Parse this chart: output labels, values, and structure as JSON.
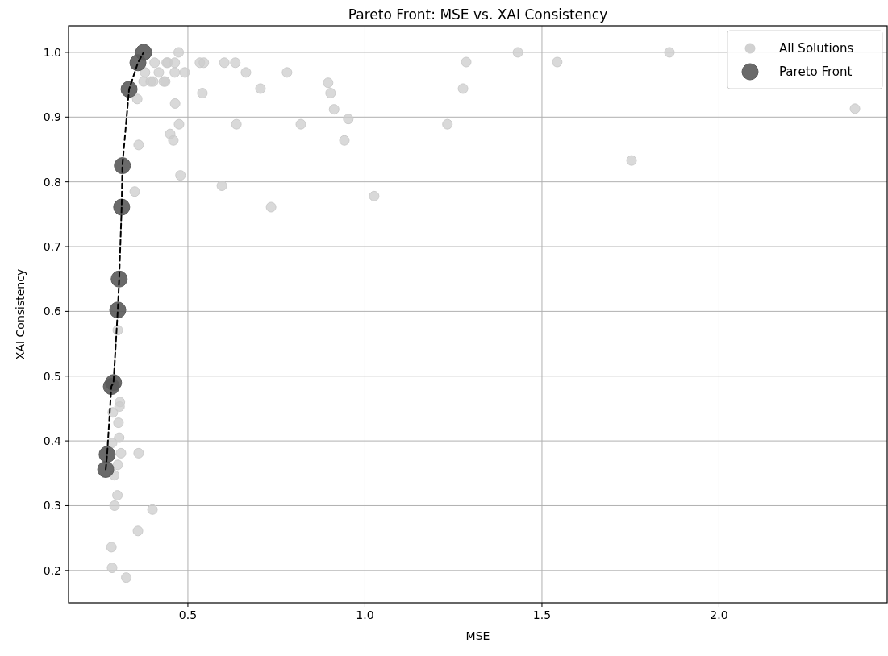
{
  "chart_data": {
    "type": "scatter",
    "title": "Pareto Front: MSE vs. XAI Consistency",
    "xlabel": "MSE",
    "ylabel": "XAI Consistency",
    "xlim": [
      0.163,
      2.475
    ],
    "ylim": [
      0.15,
      1.041
    ],
    "xticks": [
      0.5,
      {
        "value": 1,
        "label": "1.0"
      },
      1.5,
      {
        "value": 2,
        "label": "2.0"
      }
    ],
    "yticks": [
      0.2,
      0.3,
      0.4,
      0.5,
      0.6,
      0.7,
      0.8,
      0.9,
      {
        "value": 1,
        "label": "1.0"
      }
    ],
    "grid": true,
    "legend": "top right",
    "marker": "circle",
    "series": [
      {
        "name": "All Solutions",
        "color": "#cccccc",
        "x": [
          0.474,
          0.406,
          0.44,
          0.443,
          0.463,
          0.534,
          0.545,
          0.603,
          0.634,
          0.379,
          0.418,
          0.463,
          0.491,
          0.664,
          0.375,
          0.395,
          0.402,
          0.432,
          0.436,
          0.705,
          0.541,
          0.357,
          0.464,
          0.475,
          0.637,
          0.45,
          0.459,
          0.361,
          0.479,
          0.596,
          0.35,
          0.735,
          0.78,
          0.896,
          0.903,
          0.913,
          0.953,
          0.819,
          0.942,
          1.286,
          1.432,
          1.277,
          1.233,
          1.543,
          1.86,
          1.753,
          1.026,
          2.384,
          0.302,
          0.308,
          0.307,
          0.288,
          0.304,
          0.306,
          0.286,
          0.311,
          0.361,
          0.302,
          0.292,
          0.301,
          0.293,
          0.4,
          0.359,
          0.284,
          0.286,
          0.326
        ],
        "values": [
          1.0,
          0.984,
          0.984,
          0.984,
          0.984,
          0.984,
          0.984,
          0.984,
          0.984,
          0.969,
          0.969,
          0.969,
          0.969,
          0.969,
          0.955,
          0.955,
          0.955,
          0.955,
          0.955,
          0.944,
          0.937,
          0.928,
          0.921,
          0.889,
          0.889,
          0.874,
          0.864,
          0.857,
          0.81,
          0.794,
          0.785,
          0.761,
          0.969,
          0.953,
          0.937,
          0.912,
          0.897,
          0.889,
          0.864,
          0.985,
          1.0,
          0.944,
          0.889,
          0.985,
          1.0,
          0.833,
          0.778,
          0.913,
          0.571,
          0.46,
          0.453,
          0.444,
          0.428,
          0.405,
          0.397,
          0.381,
          0.381,
          0.363,
          0.347,
          0.316,
          0.3,
          0.294,
          0.261,
          0.236,
          0.204,
          0.189
        ]
      },
      {
        "name": "Pareto Front",
        "color": "#5a5a5a",
        "x": [
          0.268,
          0.272,
          0.284,
          0.29,
          0.302,
          0.306,
          0.313,
          0.315,
          0.334,
          0.359,
          0.375
        ],
        "values": [
          0.356,
          0.379,
          0.484,
          0.49,
          0.602,
          0.65,
          0.761,
          0.825,
          0.943,
          0.984,
          1.0
        ]
      },
      {
        "type": "line",
        "color": "#000000",
        "line_style": "dashed",
        "marker": "none",
        "x": [
          0.268,
          0.272,
          0.284,
          0.29,
          0.302,
          0.306,
          0.313,
          0.315,
          0.334,
          0.359,
          0.375
        ],
        "values": [
          0.356,
          0.379,
          0.484,
          0.49,
          0.602,
          0.65,
          0.761,
          0.825,
          0.943,
          0.984,
          1.0
        ]
      }
    ]
  }
}
